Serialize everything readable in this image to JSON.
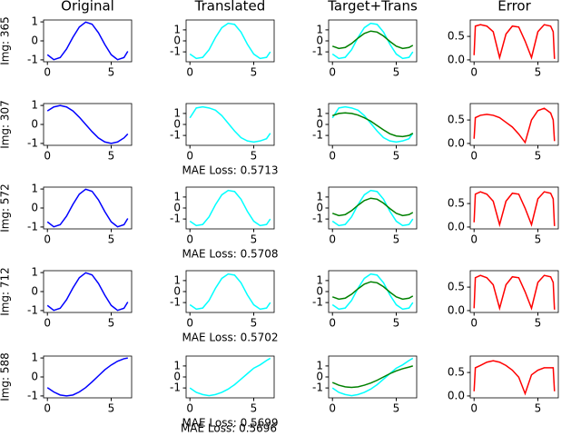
{
  "chart_data": [
    {
      "type": "line",
      "title": "Original",
      "ylabel": "Img: 365",
      "x": [
        0,
        0.5,
        1,
        1.5,
        2,
        2.5,
        3,
        3.5,
        4,
        4.5,
        5,
        5.5,
        6,
        6.3
      ],
      "series": [
        {
          "color": "#0000ff",
          "values": [
            -0.73,
            -0.99,
            -0.88,
            -0.43,
            0.19,
            0.73,
            0.99,
            0.88,
            0.43,
            -0.19,
            -0.73,
            -0.99,
            -0.88,
            -0.55
          ]
        }
      ],
      "xlim": [
        -0.3,
        6.6
      ],
      "xticks": [
        0,
        5
      ],
      "ylim": [
        -1.1,
        1.1
      ],
      "yticks": [
        -1,
        0,
        1
      ]
    },
    {
      "type": "line",
      "title": "Translated",
      "x": [
        0,
        0.5,
        1,
        1.5,
        2,
        2.5,
        3,
        3.5,
        4,
        4.5,
        5,
        5.5,
        6,
        6.3
      ],
      "series": [
        {
          "color": "#00ffff",
          "values": [
            -1.2,
            -1.6,
            -1.5,
            -0.8,
            0.3,
            1.2,
            1.6,
            1.5,
            0.8,
            -0.3,
            -1.2,
            -1.6,
            -1.5,
            -1.0
          ]
        }
      ],
      "xlim": [
        -0.3,
        6.6
      ],
      "xticks": [
        0,
        5
      ],
      "ylim": [
        -1.9,
        1.9
      ],
      "yticks": [
        -1,
        0,
        1
      ]
    },
    {
      "type": "line",
      "title": "Target+Trans",
      "x": [
        0,
        0.5,
        1,
        1.5,
        2,
        2.5,
        3,
        3.5,
        4,
        4.5,
        5,
        5.5,
        6,
        6.3
      ],
      "series": [
        {
          "color": "#00ffff",
          "values": [
            -1.2,
            -1.6,
            -1.5,
            -0.8,
            0.3,
            1.2,
            1.6,
            1.5,
            0.8,
            -0.3,
            -1.2,
            -1.6,
            -1.5,
            -1.0
          ]
        },
        {
          "color": "#008000",
          "values": [
            -0.48,
            -0.69,
            -0.6,
            -0.24,
            0.25,
            0.68,
            0.89,
            0.8,
            0.44,
            -0.05,
            -0.48,
            -0.69,
            -0.6,
            -0.4
          ]
        }
      ],
      "xlim": [
        -0.3,
        6.6
      ],
      "xticks": [
        0,
        5
      ],
      "ylim": [
        -1.9,
        1.9
      ],
      "yticks": [
        -1,
        0,
        1
      ]
    },
    {
      "type": "line",
      "title": "Error",
      "x": [
        0,
        0.1,
        0.5,
        1,
        1.5,
        2,
        2.5,
        3,
        3.5,
        4,
        4.5,
        5,
        5.5,
        6,
        6.2,
        6.3
      ],
      "series": [
        {
          "color": "#ff0000",
          "values": [
            0.1,
            0.72,
            0.75,
            0.72,
            0.6,
            0.05,
            0.55,
            0.72,
            0.7,
            0.4,
            0.05,
            0.6,
            0.75,
            0.72,
            0.6,
            0.02
          ]
        }
      ],
      "xlim": [
        -0.3,
        6.6
      ],
      "xticks": [
        0,
        5
      ],
      "ylim": [
        -0.04,
        0.85
      ],
      "yticks": [
        {
          "value": 0,
          "label": "0.0"
        },
        0.5
      ]
    },
    {
      "type": "line",
      "ylabel": "Img: 307",
      "x": [
        0,
        0.5,
        1,
        1.5,
        2,
        2.5,
        3,
        3.5,
        4,
        4.5,
        5,
        5.5,
        6,
        6.3
      ],
      "series": [
        {
          "color": "#0000ff",
          "values": [
            0.71,
            0.92,
            1,
            0.92,
            0.71,
            0.38,
            0,
            -0.38,
            -0.71,
            -0.92,
            -1,
            -0.92,
            -0.71,
            -0.5
          ]
        }
      ],
      "xlim": [
        -0.3,
        6.6
      ],
      "xticks": [
        0,
        5
      ],
      "ylim": [
        -1.1,
        1.1
      ],
      "yticks": [
        -1,
        0,
        1
      ]
    },
    {
      "type": "line",
      "xlabel": "MAE Loss: 0.5713",
      "x": [
        0,
        0.5,
        1,
        1.5,
        2,
        2.5,
        3,
        3.5,
        4,
        4.5,
        5,
        5.5,
        6,
        6.3
      ],
      "series": [
        {
          "color": "#00ffff",
          "values": [
            0.6,
            1.5,
            1.6,
            1.5,
            1.3,
            0.8,
            0.1,
            -0.6,
            -1.2,
            -1.5,
            -1.6,
            -1.5,
            -1.3,
            -0.8
          ]
        }
      ],
      "xlim": [
        -0.3,
        6.6
      ],
      "xticks": [
        0,
        5
      ],
      "ylim": [
        -1.9,
        1.9
      ],
      "yticks": [
        -1,
        0,
        1
      ]
    },
    {
      "type": "line",
      "x": [
        0,
        0.5,
        1,
        1.5,
        2,
        2.5,
        3,
        3.5,
        4,
        4.5,
        5,
        5.5,
        6,
        6.3
      ],
      "series": [
        {
          "color": "#00ffff",
          "values": [
            0.6,
            1.5,
            1.6,
            1.5,
            1.3,
            0.8,
            0.1,
            -0.6,
            -1.2,
            -1.5,
            -1.6,
            -1.5,
            -1.3,
            -0.8
          ]
        },
        {
          "color": "#008000",
          "values": [
            0.8,
            1.0,
            1.05,
            1.0,
            0.85,
            0.6,
            0.3,
            -0.1,
            -0.5,
            -0.85,
            -1.05,
            -1.1,
            -1.0,
            -0.8
          ]
        }
      ],
      "xlim": [
        -0.3,
        6.6
      ],
      "xticks": [
        0,
        5
      ],
      "ylim": [
        -1.9,
        1.9
      ],
      "yticks": [
        -1,
        0,
        1
      ]
    },
    {
      "type": "line",
      "x": [
        0,
        0.1,
        0.5,
        1,
        1.5,
        2,
        2.5,
        3,
        3.5,
        4,
        4.5,
        5,
        5.5,
        6,
        6.2,
        6.3
      ],
      "series": [
        {
          "color": "#ff0000",
          "values": [
            0.1,
            0.55,
            0.6,
            0.62,
            0.6,
            0.55,
            0.45,
            0.35,
            0.2,
            0.02,
            0.5,
            0.7,
            0.75,
            0.65,
            0.5,
            0.05
          ]
        }
      ],
      "xlim": [
        -0.3,
        6.6
      ],
      "xticks": [
        0,
        5
      ],
      "ylim": [
        -0.04,
        0.85
      ],
      "yticks": [
        {
          "value": 0,
          "label": "0.0"
        },
        0.5
      ]
    },
    {
      "type": "line",
      "ylabel": "Img: 572",
      "x": [
        0,
        0.5,
        1,
        1.5,
        2,
        2.5,
        3,
        3.5,
        4,
        4.5,
        5,
        5.5,
        6,
        6.3
      ],
      "series": [
        {
          "color": "#0000ff",
          "values": [
            -0.73,
            -0.99,
            -0.88,
            -0.43,
            0.19,
            0.73,
            0.99,
            0.88,
            0.43,
            -0.19,
            -0.73,
            -0.99,
            -0.88,
            -0.55
          ]
        }
      ],
      "xlim": [
        -0.3,
        6.6
      ],
      "xticks": [
        0,
        5
      ],
      "ylim": [
        -1.1,
        1.1
      ],
      "yticks": [
        -1,
        0,
        1
      ]
    },
    {
      "type": "line",
      "xlabel": "MAE Loss: 0.5708",
      "x": [
        0,
        0.5,
        1,
        1.5,
        2,
        2.5,
        3,
        3.5,
        4,
        4.5,
        5,
        5.5,
        6,
        6.3
      ],
      "series": [
        {
          "color": "#00ffff",
          "values": [
            -1.2,
            -1.6,
            -1.5,
            -0.8,
            0.3,
            1.2,
            1.6,
            1.5,
            0.8,
            -0.3,
            -1.2,
            -1.6,
            -1.5,
            -1.0
          ]
        }
      ],
      "xlim": [
        -0.3,
        6.6
      ],
      "xticks": [
        0,
        5
      ],
      "ylim": [
        -1.9,
        1.9
      ],
      "yticks": [
        -1,
        0,
        1
      ]
    },
    {
      "type": "line",
      "x": [
        0,
        0.5,
        1,
        1.5,
        2,
        2.5,
        3,
        3.5,
        4,
        4.5,
        5,
        5.5,
        6,
        6.3
      ],
      "series": [
        {
          "color": "#00ffff",
          "values": [
            -1.2,
            -1.6,
            -1.5,
            -0.8,
            0.3,
            1.2,
            1.6,
            1.5,
            0.8,
            -0.3,
            -1.2,
            -1.6,
            -1.5,
            -1.0
          ]
        },
        {
          "color": "#008000",
          "values": [
            -0.48,
            -0.69,
            -0.6,
            -0.24,
            0.25,
            0.68,
            0.89,
            0.8,
            0.44,
            -0.05,
            -0.48,
            -0.69,
            -0.6,
            -0.4
          ]
        }
      ],
      "xlim": [
        -0.3,
        6.6
      ],
      "xticks": [
        0,
        5
      ],
      "ylim": [
        -1.9,
        1.9
      ],
      "yticks": [
        -1,
        0,
        1
      ]
    },
    {
      "type": "line",
      "x": [
        0,
        0.1,
        0.5,
        1,
        1.5,
        2,
        2.5,
        3,
        3.5,
        4,
        4.5,
        5,
        5.5,
        6,
        6.2,
        6.3
      ],
      "series": [
        {
          "color": "#ff0000",
          "values": [
            0.1,
            0.7,
            0.75,
            0.7,
            0.55,
            0.05,
            0.55,
            0.72,
            0.7,
            0.4,
            0.05,
            0.6,
            0.75,
            0.72,
            0.6,
            0.02
          ]
        }
      ],
      "xlim": [
        -0.3,
        6.6
      ],
      "xticks": [
        0,
        5
      ],
      "ylim": [
        -0.04,
        0.85
      ],
      "yticks": [
        {
          "value": 0,
          "label": "0.0"
        },
        0.5
      ]
    },
    {
      "type": "line",
      "ylabel": "Img: 712",
      "x": [
        0,
        0.5,
        1,
        1.5,
        2,
        2.5,
        3,
        3.5,
        4,
        4.5,
        5,
        5.5,
        6,
        6.3
      ],
      "series": [
        {
          "color": "#0000ff",
          "values": [
            -0.73,
            -0.99,
            -0.88,
            -0.43,
            0.19,
            0.73,
            0.99,
            0.88,
            0.43,
            -0.19,
            -0.73,
            -0.99,
            -0.88,
            -0.55
          ]
        }
      ],
      "xlim": [
        -0.3,
        6.6
      ],
      "xticks": [
        0,
        5
      ],
      "ylim": [
        -1.1,
        1.1
      ],
      "yticks": [
        -1,
        0,
        1
      ]
    },
    {
      "type": "line",
      "xlabel": "MAE Loss: 0.5702",
      "x": [
        0,
        0.5,
        1,
        1.5,
        2,
        2.5,
        3,
        3.5,
        4,
        4.5,
        5,
        5.5,
        6,
        6.3
      ],
      "series": [
        {
          "color": "#00ffff",
          "values": [
            -1.2,
            -1.6,
            -1.5,
            -0.8,
            0.3,
            1.2,
            1.6,
            1.5,
            0.8,
            -0.3,
            -1.2,
            -1.6,
            -1.5,
            -1.0
          ]
        }
      ],
      "xlim": [
        -0.3,
        6.6
      ],
      "xticks": [
        0,
        5
      ],
      "ylim": [
        -1.9,
        1.9
      ],
      "yticks": [
        -1,
        0,
        1
      ]
    },
    {
      "type": "line",
      "x": [
        0,
        0.5,
        1,
        1.5,
        2,
        2.5,
        3,
        3.5,
        4,
        4.5,
        5,
        5.5,
        6,
        6.3
      ],
      "series": [
        {
          "color": "#00ffff",
          "values": [
            -1.2,
            -1.6,
            -1.5,
            -0.8,
            0.3,
            1.2,
            1.6,
            1.5,
            0.8,
            -0.3,
            -1.2,
            -1.6,
            -1.5,
            -1.0
          ]
        },
        {
          "color": "#008000",
          "values": [
            -0.48,
            -0.69,
            -0.6,
            -0.24,
            0.25,
            0.68,
            0.89,
            0.8,
            0.44,
            -0.05,
            -0.48,
            -0.69,
            -0.6,
            -0.4
          ]
        }
      ],
      "xlim": [
        -0.3,
        6.6
      ],
      "xticks": [
        0,
        5
      ],
      "ylim": [
        -1.9,
        1.9
      ],
      "yticks": [
        -1,
        0,
        1
      ]
    },
    {
      "type": "line",
      "x": [
        0,
        0.1,
        0.5,
        1,
        1.5,
        2,
        2.5,
        3,
        3.5,
        4,
        4.5,
        5,
        5.5,
        6,
        6.2,
        6.3
      ],
      "series": [
        {
          "color": "#ff0000",
          "values": [
            0.05,
            0.7,
            0.75,
            0.7,
            0.55,
            0.05,
            0.55,
            0.72,
            0.7,
            0.4,
            0.05,
            0.6,
            0.75,
            0.72,
            0.6,
            0.02
          ]
        }
      ],
      "xlim": [
        -0.3,
        6.6
      ],
      "xticks": [
        0,
        5
      ],
      "ylim": [
        -0.04,
        0.85
      ],
      "yticks": [
        {
          "value": 0,
          "label": "0.0"
        },
        0.5
      ]
    },
    {
      "type": "line",
      "ylabel": "Img: 588",
      "x": [
        0,
        0.5,
        1,
        1.5,
        2,
        2.5,
        3,
        3.5,
        4,
        4.5,
        5,
        5.5,
        6,
        6.3
      ],
      "series": [
        {
          "color": "#0000ff",
          "values": [
            -0.56,
            -0.79,
            -0.95,
            -1,
            -0.95,
            -0.79,
            -0.56,
            -0.26,
            0.06,
            0.38,
            0.63,
            0.83,
            0.96,
            1.0
          ]
        }
      ],
      "xlim": [
        -0.3,
        6.6
      ],
      "xticks": [
        0,
        5
      ],
      "ylim": [
        -1.1,
        1.1
      ],
      "yticks": [
        -1,
        0,
        1
      ]
    },
    {
      "type": "line",
      "xlabel": "MAE Loss: 0.5699",
      "x": [
        0,
        0.5,
        1,
        1.5,
        2,
        2.5,
        3,
        3.5,
        4,
        4.5,
        5,
        5.5,
        6,
        6.3
      ],
      "series": [
        {
          "color": "#00ffff",
          "values": [
            -1.0,
            -1.4,
            -1.6,
            -1.7,
            -1.6,
            -1.4,
            -1.1,
            -0.7,
            -0.2,
            0.3,
            0.8,
            1.1,
            1.5,
            1.7
          ]
        }
      ],
      "xlim": [
        -0.3,
        6.6
      ],
      "xticks": [
        0,
        5
      ],
      "ylim": [
        -1.9,
        1.9
      ],
      "yticks": [
        -1,
        0,
        1
      ]
    },
    {
      "type": "line",
      "x": [
        0,
        0.5,
        1,
        1.5,
        2,
        2.5,
        3,
        3.5,
        4,
        4.5,
        5,
        5.5,
        6,
        6.3
      ],
      "series": [
        {
          "color": "#00ffff",
          "values": [
            -1.0,
            -1.4,
            -1.6,
            -1.7,
            -1.6,
            -1.4,
            -1.1,
            -0.7,
            -0.2,
            0.3,
            0.8,
            1.1,
            1.5,
            1.7
          ]
        },
        {
          "color": "#008000",
          "values": [
            -0.5,
            -0.75,
            -0.9,
            -0.95,
            -0.9,
            -0.75,
            -0.55,
            -0.3,
            0.0,
            0.3,
            0.55,
            0.75,
            0.9,
            1.0
          ]
        }
      ],
      "xlim": [
        -0.3,
        6.6
      ],
      "xticks": [
        0,
        5
      ],
      "ylim": [
        -1.9,
        1.9
      ],
      "yticks": [
        -1,
        0,
        1
      ]
    },
    {
      "type": "line",
      "x": [
        0,
        0.1,
        0.5,
        1,
        1.5,
        2,
        2.5,
        3,
        3.5,
        4,
        4.5,
        5,
        5.5,
        6,
        6.2,
        6.3
      ],
      "series": [
        {
          "color": "#ff0000",
          "values": [
            0.1,
            0.6,
            0.65,
            0.72,
            0.75,
            0.72,
            0.65,
            0.55,
            0.4,
            0.05,
            0.45,
            0.55,
            0.6,
            0.6,
            0.6,
            0.1
          ]
        }
      ],
      "xlim": [
        -0.3,
        6.6
      ],
      "xticks": [
        0,
        5
      ],
      "ylim": [
        -0.04,
        0.85
      ],
      "yticks": [
        {
          "value": 0,
          "label": "0.0"
        },
        0.5
      ]
    }
  ],
  "footer": "MAE Loss: 0.5696"
}
